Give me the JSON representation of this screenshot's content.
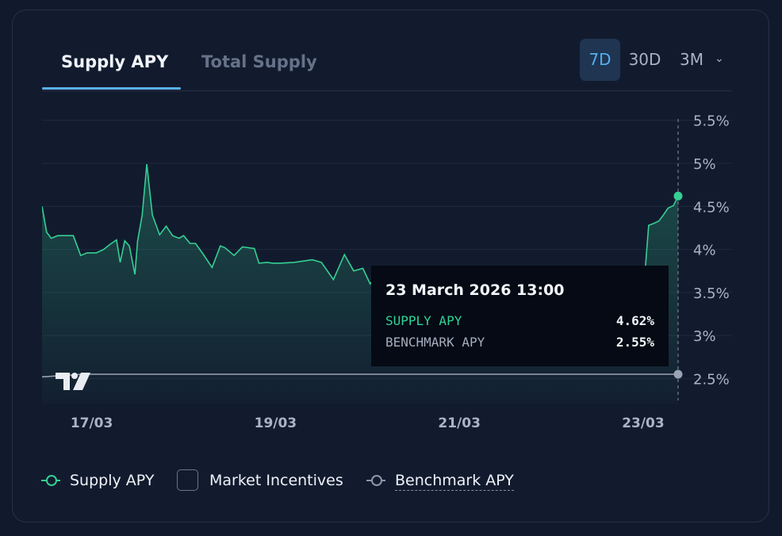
{
  "tabs": [
    {
      "label": "Supply APY",
      "active": true
    },
    {
      "label": "Total Supply",
      "active": false
    }
  ],
  "periods": [
    {
      "label": "7D",
      "active": true
    },
    {
      "label": "30D",
      "active": false
    },
    {
      "label": "3M",
      "active": false
    }
  ],
  "period_dropdown_icon": "chevron-down-icon",
  "tooltip": {
    "date": "23 March 2026 13:00",
    "supply_label": "SUPPLY APY",
    "supply_value": "4.62%",
    "benchmark_label": "BENCHMARK APY",
    "benchmark_value": "2.55%"
  },
  "legend": {
    "supply": "Supply APY",
    "incentives": "Market Incentives",
    "benchmark": "Benchmark APY"
  },
  "colors": {
    "supply": "#35cf93",
    "benchmark": "#9ba4b3",
    "accent": "#55aef0"
  },
  "chart_data": {
    "type": "area",
    "y_ticks": [
      "5.5%",
      "5%",
      "4.5%",
      "4%",
      "3.5%",
      "3%",
      "2.5%"
    ],
    "y_tick_values": [
      5.5,
      5.0,
      4.5,
      4.0,
      3.5,
      3.0,
      2.5
    ],
    "ylim": [
      2.2,
      5.7
    ],
    "x_ticks": [
      "17/03",
      "19/03",
      "21/03",
      "23/03"
    ],
    "x_tick_days": [
      17,
      19,
      21,
      23
    ],
    "xlim": [
      16.46,
      23.38
    ],
    "grid": true,
    "series": [
      {
        "name": "Supply APY",
        "x": [
          16.46,
          16.51,
          16.56,
          16.63,
          16.8,
          16.88,
          16.95,
          17.05,
          17.13,
          17.2,
          17.27,
          17.31,
          17.36,
          17.41,
          17.47,
          17.5,
          17.55,
          17.6,
          17.66,
          17.74,
          17.81,
          17.88,
          17.95,
          18.0,
          18.07,
          18.13,
          18.21,
          18.31,
          18.4,
          18.45,
          18.55,
          18.64,
          18.77,
          18.82,
          18.91,
          18.97,
          19.05,
          19.2,
          19.4,
          19.5,
          19.63,
          19.75,
          19.85,
          19.95,
          20.03,
          20.09,
          20.14,
          20.2,
          20.26,
          20.33,
          20.42,
          20.5,
          20.6,
          20.7,
          21.0,
          21.2,
          21.5,
          21.7,
          22.0,
          22.2,
          22.4,
          22.7,
          22.85,
          22.91,
          22.96,
          23.01,
          23.06,
          23.11,
          23.17,
          23.22,
          23.27,
          23.33,
          23.38
        ],
        "values": [
          4.5,
          4.2,
          4.13,
          4.16,
          4.16,
          3.93,
          3.96,
          3.96,
          4.0,
          4.06,
          4.11,
          3.85,
          4.1,
          4.04,
          3.71,
          4.1,
          4.4,
          4.99,
          4.4,
          4.17,
          4.27,
          4.16,
          4.13,
          4.16,
          4.07,
          4.07,
          3.95,
          3.79,
          4.04,
          4.02,
          3.93,
          4.03,
          4.01,
          3.84,
          3.85,
          3.84,
          3.84,
          3.85,
          3.88,
          3.85,
          3.65,
          3.94,
          3.75,
          3.78,
          3.6,
          3.68,
          3.73,
          3.75,
          3.75,
          3.7,
          3.68,
          3.7,
          3.62,
          3.6,
          3.56,
          3.56,
          3.54,
          3.55,
          3.5,
          3.47,
          3.5,
          3.5,
          3.5,
          3.5,
          3.52,
          3.6,
          4.28,
          4.3,
          4.33,
          4.4,
          4.48,
          4.51,
          4.62
        ]
      },
      {
        "name": "Benchmark APY",
        "x": [
          16.46,
          16.9,
          17.15,
          23.38
        ],
        "values": [
          2.52,
          2.55,
          2.55,
          2.55
        ]
      }
    ]
  }
}
